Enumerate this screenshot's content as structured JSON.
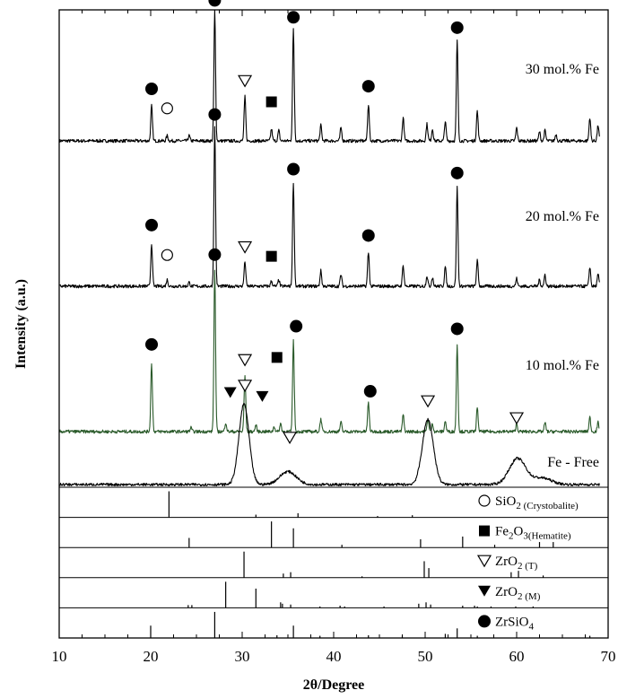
{
  "chart_data": {
    "type": "line",
    "xlabel": "2θ/Degree",
    "ylabel": "Intensity (a.u.)",
    "xlim": [
      10,
      70
    ],
    "xticks": [
      10,
      20,
      30,
      40,
      50,
      60,
      70
    ],
    "y_tick_labels": false,
    "series": [
      {
        "name": "30 mol.% Fe",
        "color": "#000000",
        "peaks": [
          [
            20.1,
            0.27
          ],
          [
            21.8,
            0.04
          ],
          [
            24.2,
            0.04
          ],
          [
            27.0,
            1.0
          ],
          [
            30.3,
            0.34
          ],
          [
            33.2,
            0.09
          ],
          [
            34.0,
            0.08
          ],
          [
            35.6,
            0.86
          ],
          [
            38.6,
            0.12
          ],
          [
            40.8,
            0.1
          ],
          [
            43.8,
            0.28
          ],
          [
            47.6,
            0.18
          ],
          [
            50.2,
            0.13
          ],
          [
            50.8,
            0.09
          ],
          [
            52.2,
            0.15
          ],
          [
            53.5,
            0.77
          ],
          [
            55.7,
            0.23
          ],
          [
            60.0,
            0.1
          ],
          [
            62.5,
            0.07
          ],
          [
            63.1,
            0.08
          ],
          [
            64.3,
            0.05
          ],
          [
            68.0,
            0.18
          ],
          [
            68.9,
            0.12
          ]
        ],
        "markers": [
          {
            "symbol": "filled-circle",
            "x": 20.1,
            "y": 0.4
          },
          {
            "symbol": "open-circle",
            "x": 21.8,
            "y": 0.25
          },
          {
            "symbol": "filled-circle",
            "x": 27.0,
            "y": 1.08
          },
          {
            "symbol": "open-triangle",
            "x": 30.3,
            "y": 0.46
          },
          {
            "symbol": "filled-square",
            "x": 33.2,
            "y": 0.3
          },
          {
            "symbol": "filled-circle",
            "x": 35.6,
            "y": 0.95
          },
          {
            "symbol": "filled-circle",
            "x": 43.8,
            "y": 0.42
          },
          {
            "symbol": "filled-circle",
            "x": 53.5,
            "y": 0.87
          }
        ]
      },
      {
        "name": "20 mol.% Fe",
        "color": "#000000",
        "peaks": [
          [
            20.1,
            0.33
          ],
          [
            21.8,
            0.05
          ],
          [
            24.2,
            0.03
          ],
          [
            27.0,
            1.22
          ],
          [
            30.3,
            0.19
          ],
          [
            33.2,
            0.04
          ],
          [
            34.0,
            0.05
          ],
          [
            35.6,
            0.8
          ],
          [
            38.6,
            0.12
          ],
          [
            40.8,
            0.09
          ],
          [
            43.8,
            0.26
          ],
          [
            47.6,
            0.16
          ],
          [
            50.2,
            0.08
          ],
          [
            50.8,
            0.07
          ],
          [
            52.2,
            0.15
          ],
          [
            53.5,
            0.76
          ],
          [
            55.7,
            0.2
          ],
          [
            60.0,
            0.06
          ],
          [
            62.5,
            0.05
          ],
          [
            63.1,
            0.09
          ],
          [
            68.0,
            0.15
          ],
          [
            68.9,
            0.09
          ]
        ],
        "markers": [
          {
            "symbol": "filled-circle",
            "x": 20.1,
            "y": 0.47
          },
          {
            "symbol": "open-circle",
            "x": 21.8,
            "y": 0.24
          },
          {
            "symbol": "filled-circle",
            "x": 27.0,
            "y": 1.32
          },
          {
            "symbol": "open-triangle",
            "x": 30.3,
            "y": 0.3
          },
          {
            "symbol": "filled-square",
            "x": 33.2,
            "y": 0.23
          },
          {
            "symbol": "filled-circle",
            "x": 35.6,
            "y": 0.9
          },
          {
            "symbol": "filled-circle",
            "x": 43.8,
            "y": 0.39
          },
          {
            "symbol": "filled-circle",
            "x": 53.5,
            "y": 0.87
          }
        ]
      },
      {
        "name": "10 mol.% Fe",
        "color": "#2a5a2a",
        "peaks": [
          [
            20.1,
            0.53
          ],
          [
            24.4,
            0.03
          ],
          [
            27.0,
            1.25
          ],
          [
            28.2,
            0.07
          ],
          [
            30.3,
            0.43
          ],
          [
            31.5,
            0.05
          ],
          [
            33.5,
            0.04
          ],
          [
            34.2,
            0.06
          ],
          [
            35.6,
            0.7
          ],
          [
            38.6,
            0.1
          ],
          [
            40.8,
            0.07
          ],
          [
            43.8,
            0.22
          ],
          [
            47.6,
            0.13
          ],
          [
            50.3,
            0.1
          ],
          [
            50.8,
            0.06
          ],
          [
            52.2,
            0.08
          ],
          [
            53.5,
            0.67
          ],
          [
            55.7,
            0.18
          ],
          [
            60.0,
            0.06
          ],
          [
            63.1,
            0.07
          ],
          [
            68.0,
            0.11
          ],
          [
            68.9,
            0.07
          ]
        ],
        "markers": [
          {
            "symbol": "filled-circle",
            "x": 20.1,
            "y": 0.67
          },
          {
            "symbol": "filled-circle",
            "x": 27.0,
            "y": 1.36
          },
          {
            "symbol": "filled-triangle-down",
            "x": 28.7,
            "y": 0.3
          },
          {
            "symbol": "open-triangle",
            "x": 30.3,
            "y": 0.55
          },
          {
            "symbol": "filled-triangle-down",
            "x": 32.2,
            "y": 0.27
          },
          {
            "symbol": "filled-square",
            "x": 33.8,
            "y": 0.57
          },
          {
            "symbol": "filled-circle",
            "x": 35.9,
            "y": 0.81
          },
          {
            "symbol": "filled-circle",
            "x": 44.0,
            "y": 0.31
          },
          {
            "symbol": "filled-circle",
            "x": 53.5,
            "y": 0.79
          }
        ]
      },
      {
        "name": "Fe - Free",
        "color": "#000000",
        "broad_peaks": [
          [
            30.2,
            0.62,
            0.55
          ],
          [
            35.0,
            0.1,
            0.9
          ],
          [
            50.3,
            0.5,
            0.6
          ],
          [
            60.1,
            0.2,
            0.9
          ],
          [
            62.8,
            0.05,
            1.0
          ]
        ],
        "markers": [
          {
            "symbol": "open-triangle",
            "x": 30.3,
            "y": 0.76
          },
          {
            "symbol": "open-triangle",
            "x": 35.2,
            "y": 0.36
          },
          {
            "symbol": "open-triangle",
            "x": 50.3,
            "y": 0.64
          },
          {
            "symbol": "open-triangle",
            "x": 60.0,
            "y": 0.51
          }
        ]
      }
    ],
    "reference_patterns": [
      {
        "symbol": "open-circle",
        "main": "SiO",
        "sub1": "2",
        "main2": "",
        "sub2": " (Crystobalite)",
        "lines": [
          [
            22.0,
            0.95
          ],
          [
            31.5,
            0.1
          ],
          [
            36.1,
            0.15
          ],
          [
            44.8,
            0.05
          ],
          [
            48.6,
            0.08
          ]
        ]
      },
      {
        "symbol": "filled-square",
        "main": "Fe",
        "sub1": "2",
        "main2": "O",
        "sub2": "3(Hematite)",
        "lines": [
          [
            24.2,
            0.35
          ],
          [
            33.2,
            0.95
          ],
          [
            35.6,
            0.7
          ],
          [
            40.9,
            0.1
          ],
          [
            49.5,
            0.3
          ],
          [
            54.1,
            0.4
          ],
          [
            57.6,
            0.1
          ],
          [
            62.5,
            0.2
          ],
          [
            64.0,
            0.2
          ]
        ]
      },
      {
        "symbol": "open-triangle",
        "main": "ZrO",
        "sub1": "2",
        "main2": "",
        "sub2": " (T)",
        "lines": [
          [
            30.2,
            0.95
          ],
          [
            34.5,
            0.15
          ],
          [
            35.3,
            0.2
          ],
          [
            43.1,
            0.05
          ],
          [
            49.9,
            0.6
          ],
          [
            50.4,
            0.35
          ],
          [
            59.4,
            0.2
          ],
          [
            60.2,
            0.25
          ],
          [
            62.9,
            0.08
          ]
        ]
      },
      {
        "symbol": "filled-triangle-down",
        "main": "ZrO",
        "sub1": "2",
        "main2": "",
        "sub2": " (M)",
        "lines": [
          [
            24.1,
            0.1
          ],
          [
            24.5,
            0.1
          ],
          [
            28.2,
            0.95
          ],
          [
            31.5,
            0.7
          ],
          [
            34.2,
            0.2
          ],
          [
            34.4,
            0.15
          ],
          [
            35.3,
            0.12
          ],
          [
            38.5,
            0.05
          ],
          [
            40.7,
            0.08
          ],
          [
            41.2,
            0.05
          ],
          [
            45.5,
            0.05
          ],
          [
            49.3,
            0.15
          ],
          [
            50.1,
            0.2
          ],
          [
            50.6,
            0.12
          ],
          [
            54.1,
            0.08
          ],
          [
            55.4,
            0.08
          ],
          [
            55.7,
            0.05
          ],
          [
            57.2,
            0.05
          ],
          [
            59.9,
            0.05
          ],
          [
            61.8,
            0.05
          ]
        ]
      },
      {
        "symbol": "filled-circle",
        "main": "ZrSiO",
        "sub1": "4",
        "main2": "",
        "sub2": "",
        "lines": [
          [
            20.0,
            0.45
          ],
          [
            27.0,
            0.95
          ],
          [
            33.8,
            0.1
          ],
          [
            35.6,
            0.45
          ],
          [
            38.5,
            0.08
          ],
          [
            43.8,
            0.1
          ],
          [
            47.5,
            0.08
          ],
          [
            52.2,
            0.15
          ],
          [
            53.5,
            0.35
          ],
          [
            55.7,
            0.08
          ],
          [
            68.0,
            0.08
          ]
        ]
      }
    ]
  }
}
